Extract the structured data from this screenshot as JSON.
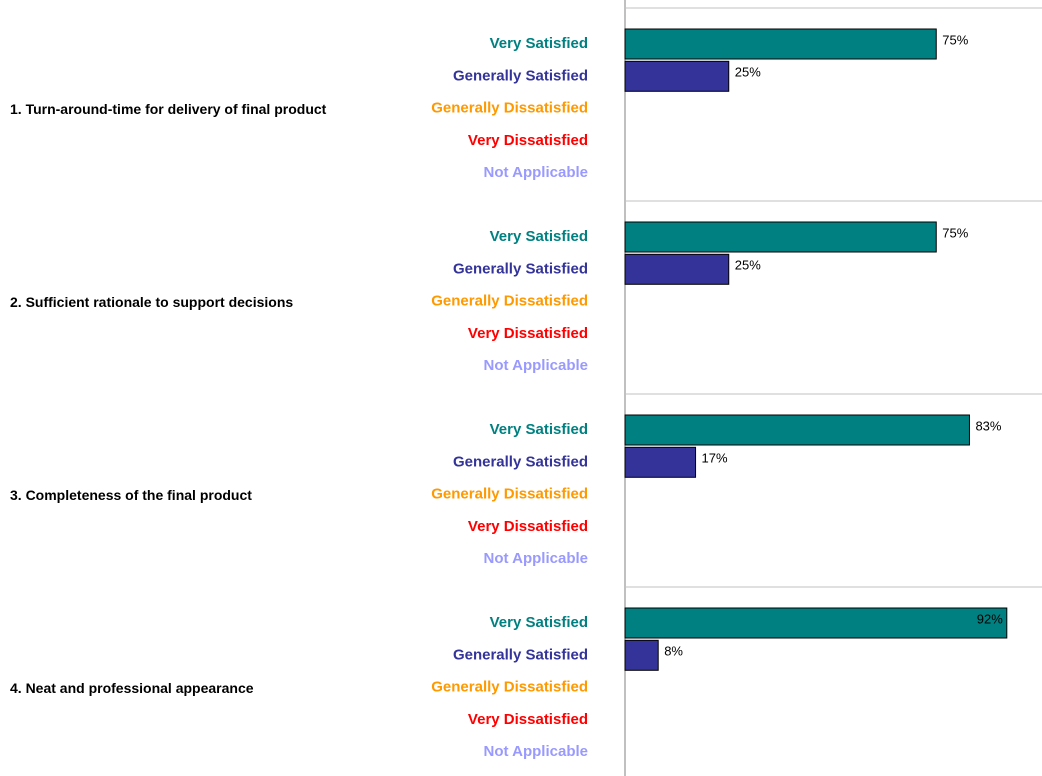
{
  "chart_data": {
    "type": "bar",
    "categories": [
      "Very Satisfied",
      "Generally Satisfied",
      "Generally Dissatisfied",
      "Very Dissatisfied",
      "Not Applicable"
    ],
    "category_colors": [
      "#008080",
      "#333399",
      "#ff9900",
      "#ff0000",
      "#9999ff"
    ],
    "bar_colors": [
      "#008080",
      "#333399",
      "#ff9900",
      "#ff0000",
      "#9999ff"
    ],
    "xlim": [
      0,
      100
    ],
    "panels": [
      {
        "title": "1.  Turn-around-time for delivery of final product",
        "values": [
          75,
          25,
          0,
          0,
          0
        ],
        "value_labels": [
          "75%",
          "25%",
          null,
          null,
          null
        ]
      },
      {
        "title": "2.  Sufficient rationale to support decisions",
        "values": [
          75,
          25,
          0,
          0,
          0
        ],
        "value_labels": [
          "75%",
          "25%",
          null,
          null,
          null
        ]
      },
      {
        "title": "3.  Completeness of the final product",
        "values": [
          83,
          17,
          0,
          0,
          0
        ],
        "value_labels": [
          "83%",
          "17%",
          null,
          null,
          null
        ]
      },
      {
        "title": "4.  Neat and professional appearance",
        "values": [
          92,
          8,
          0,
          0,
          0
        ],
        "value_labels": [
          "92%",
          "8%",
          null,
          null,
          null
        ]
      }
    ]
  }
}
